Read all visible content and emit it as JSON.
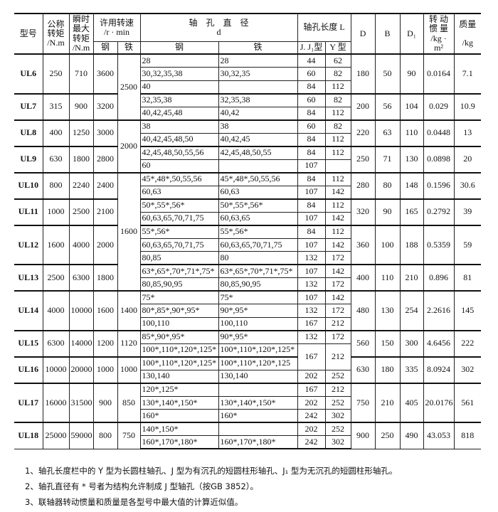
{
  "header": {
    "model": "型号",
    "torque": "公称\n转矩\n/N.m",
    "peak_torque": "瞬时\n最大\n转矩\n/N.m",
    "speed": "许用转速\n/r · min",
    "speed_steel": "钢",
    "speed_iron": "铁",
    "bore": "轴　孔　直　径\nd",
    "bore_steel": "钢",
    "bore_iron": "铁",
    "length": "轴孔长度 L",
    "length_j": "J. J₁型",
    "length_y": "Y 型",
    "D": "D",
    "B": "B",
    "D1": "D₁",
    "inertia": "转 动\n惯 量\n/kg · m²",
    "mass": "质量\n\n/kg"
  },
  "models": [
    {
      "model": "UL6",
      "torque": "250",
      "peak": "710",
      "speed_steel": "3600",
      "speed_iron": "2500",
      "D": "180",
      "B": "50",
      "D1": "90",
      "inertia": "0.0164",
      "mass": "7.1",
      "bores": [
        {
          "steel": "28",
          "iron": "28",
          "j": "44",
          "y": "62"
        },
        {
          "steel": "30,32,35,38",
          "iron": "30,32,35",
          "j": "60",
          "y": "82"
        },
        {
          "steel": "40",
          "iron": "",
          "j": "84",
          "y": "112"
        }
      ]
    },
    {
      "model": "UL7",
      "torque": "315",
      "peak": "900",
      "speed_steel": "3200",
      "speed_iron": "2500",
      "D": "200",
      "B": "56",
      "D1": "104",
      "inertia": "0.029",
      "mass": "10.9",
      "bores": [
        {
          "steel": "32,35,38",
          "iron": "32,35,38",
          "j": "60",
          "y": "82"
        },
        {
          "steel": "40,42,45,48",
          "iron": "40,42",
          "j": "84",
          "y": "112"
        }
      ]
    },
    {
      "model": "UL8",
      "torque": "400",
      "peak": "1250",
      "speed_steel": "3000",
      "speed_iron": "2000",
      "D": "220",
      "B": "63",
      "D1": "110",
      "inertia": "0.0448",
      "mass": "13",
      "bores": [
        {
          "steel": "38",
          "iron": "38",
          "j": "60",
          "y": "82"
        },
        {
          "steel": "40,42,45,48,50",
          "iron": "40,42,45",
          "j": "84",
          "y": "112"
        }
      ]
    },
    {
      "model": "UL9",
      "torque": "630",
      "peak": "1800",
      "speed_steel": "2800",
      "speed_iron": "2000",
      "D": "250",
      "B": "71",
      "D1": "130",
      "inertia": "0.0898",
      "mass": "20",
      "bores": [
        {
          "steel": "42,45,48,50,55,56",
          "iron": "42,45,48,50,55",
          "j": "84",
          "y": "112"
        },
        {
          "steel": "60",
          "iron": "",
          "j": "107",
          "y": ""
        }
      ]
    },
    {
      "model": "UL10",
      "torque": "800",
      "peak": "2240",
      "speed_steel": "2400",
      "speed_iron": "1600",
      "D": "280",
      "B": "80",
      "D1": "148",
      "inertia": "0.1596",
      "mass": "30.6",
      "bores": [
        {
          "steel": "45*,48*,50,55,56",
          "iron": "45*,48*,50,55,56",
          "j": "84",
          "y": "112"
        },
        {
          "steel": "60,63",
          "iron": "60,63",
          "j": "107",
          "y": "142"
        }
      ]
    },
    {
      "model": "UL11",
      "torque": "1000",
      "peak": "2500",
      "speed_steel": "2100",
      "speed_iron": "1600",
      "D": "320",
      "B": "90",
      "D1": "165",
      "inertia": "0.2792",
      "mass": "39",
      "bores": [
        {
          "steel": "50*,55*,56*",
          "iron": "50*,55*,56*",
          "j": "84",
          "y": "112"
        },
        {
          "steel": "60,63,65,70,71,75",
          "iron": "60,63,65",
          "j": "107",
          "y": "142"
        }
      ]
    },
    {
      "model": "UL12",
      "torque": "1600",
      "peak": "4000",
      "speed_steel": "2000",
      "speed_iron": "1600",
      "D": "360",
      "B": "100",
      "D1": "188",
      "inertia": "0.5359",
      "mass": "59",
      "bores": [
        {
          "steel": "55*,56*",
          "iron": "55*,56*",
          "j": "84",
          "y": "112"
        },
        {
          "steel": "60,63,65,70,71,75",
          "iron": "60,63,65,70,71,75",
          "j": "107",
          "y": "142"
        },
        {
          "steel": "80,85",
          "iron": "80",
          "j": "132",
          "y": "172"
        }
      ]
    },
    {
      "model": "UL13",
      "torque": "2500",
      "peak": "6300",
      "speed_steel": "1800",
      "speed_iron": "1600",
      "D": "400",
      "B": "110",
      "D1": "210",
      "inertia": "0.896",
      "mass": "81",
      "bores": [
        {
          "steel": "63*,65*,70*,71*,75*",
          "iron": "63*,65*,70*,71*,75*",
          "j": "107",
          "y": "142"
        },
        {
          "steel": "80,85,90,95",
          "iron": "80,85,90,95",
          "j": "132",
          "y": "172"
        }
      ]
    },
    {
      "model": "UL14",
      "torque": "4000",
      "peak": "10000",
      "speed_steel": "1600",
      "speed_iron": "1400",
      "D": "480",
      "B": "130",
      "D1": "254",
      "inertia": "2.2616",
      "mass": "145",
      "bores": [
        {
          "steel": "75*",
          "iron": "75*",
          "j": "107",
          "y": "142"
        },
        {
          "steel": "80*,85*,90*,95*",
          "iron": "90*,95*",
          "j": "132",
          "y": "172"
        },
        {
          "steel": "100,110",
          "iron": "100,110",
          "j": "167",
          "y": "212"
        }
      ]
    },
    {
      "model": "UL15",
      "torque": "6300",
      "peak": "14000",
      "speed_steel": "1200",
      "speed_iron": "1120",
      "D": "560",
      "B": "150",
      "D1": "300",
      "inertia": "4.6456",
      "mass": "222",
      "bores": [
        {
          "steel": "85*,90*,95*",
          "iron": "90*,95*",
          "j": "132",
          "y": "172"
        },
        {
          "steel": "100*,110*,120*,125*",
          "iron": "100*,110*,120*,125*",
          "j": "167",
          "y": "212",
          "lengths_shared_with_next": true
        }
      ]
    },
    {
      "model": "UL16",
      "torque": "10000",
      "peak": "20000",
      "speed_steel": "1000",
      "speed_iron": "1000",
      "D": "630",
      "B": "180",
      "D1": "335",
      "inertia": "8.0924",
      "mass": "302",
      "bores": [
        {
          "steel": "100*,110*,120*,125*",
          "iron": "100*,110*,120*,125",
          "j": "167",
          "y": "212"
        },
        {
          "steel": "130,140",
          "iron": "130,140",
          "j": "202",
          "y": "252"
        }
      ]
    },
    {
      "model": "UL17",
      "torque": "16000",
      "peak": "31500",
      "speed_steel": "900",
      "speed_iron": "850",
      "D": "750",
      "B": "210",
      "D1": "405",
      "inertia": "20.0176",
      "mass": "561",
      "bores": [
        {
          "steel": "120*,125*",
          "iron": "",
          "j": "167",
          "y": "212"
        },
        {
          "steel": "130*,140*,150*",
          "iron": "130*,140*,150*",
          "j": "202",
          "y": "252"
        },
        {
          "steel": "160*",
          "iron": "160*",
          "j": "242",
          "y": "302"
        }
      ]
    },
    {
      "model": "UL18",
      "torque": "25000",
      "peak": "59000",
      "speed_steel": "800",
      "speed_iron": "750",
      "D": "900",
      "B": "250",
      "D1": "490",
      "inertia": "43.053",
      "mass": "818",
      "bores": [
        {
          "steel": "140*,150*",
          "iron": "",
          "j": "202",
          "y": "252"
        },
        {
          "steel": "160*,170*,180*",
          "iron": "160*,170*,180*",
          "j": "242",
          "y": "302"
        }
      ]
    }
  ],
  "notes": [
    "1、轴孔长度栏中的 Y 型为长圆柱轴孔、J 型为有沉孔的短圆柱形轴孔、J₁ 型为无沉孔的短圆柱形轴孔。",
    "2、轴孔直径有 * 号者为结构允许制成 J 型轴孔（按GB 3852）。",
    "3、联轴器转动惯量和质量是各型号中最大值的计算近似值。"
  ]
}
